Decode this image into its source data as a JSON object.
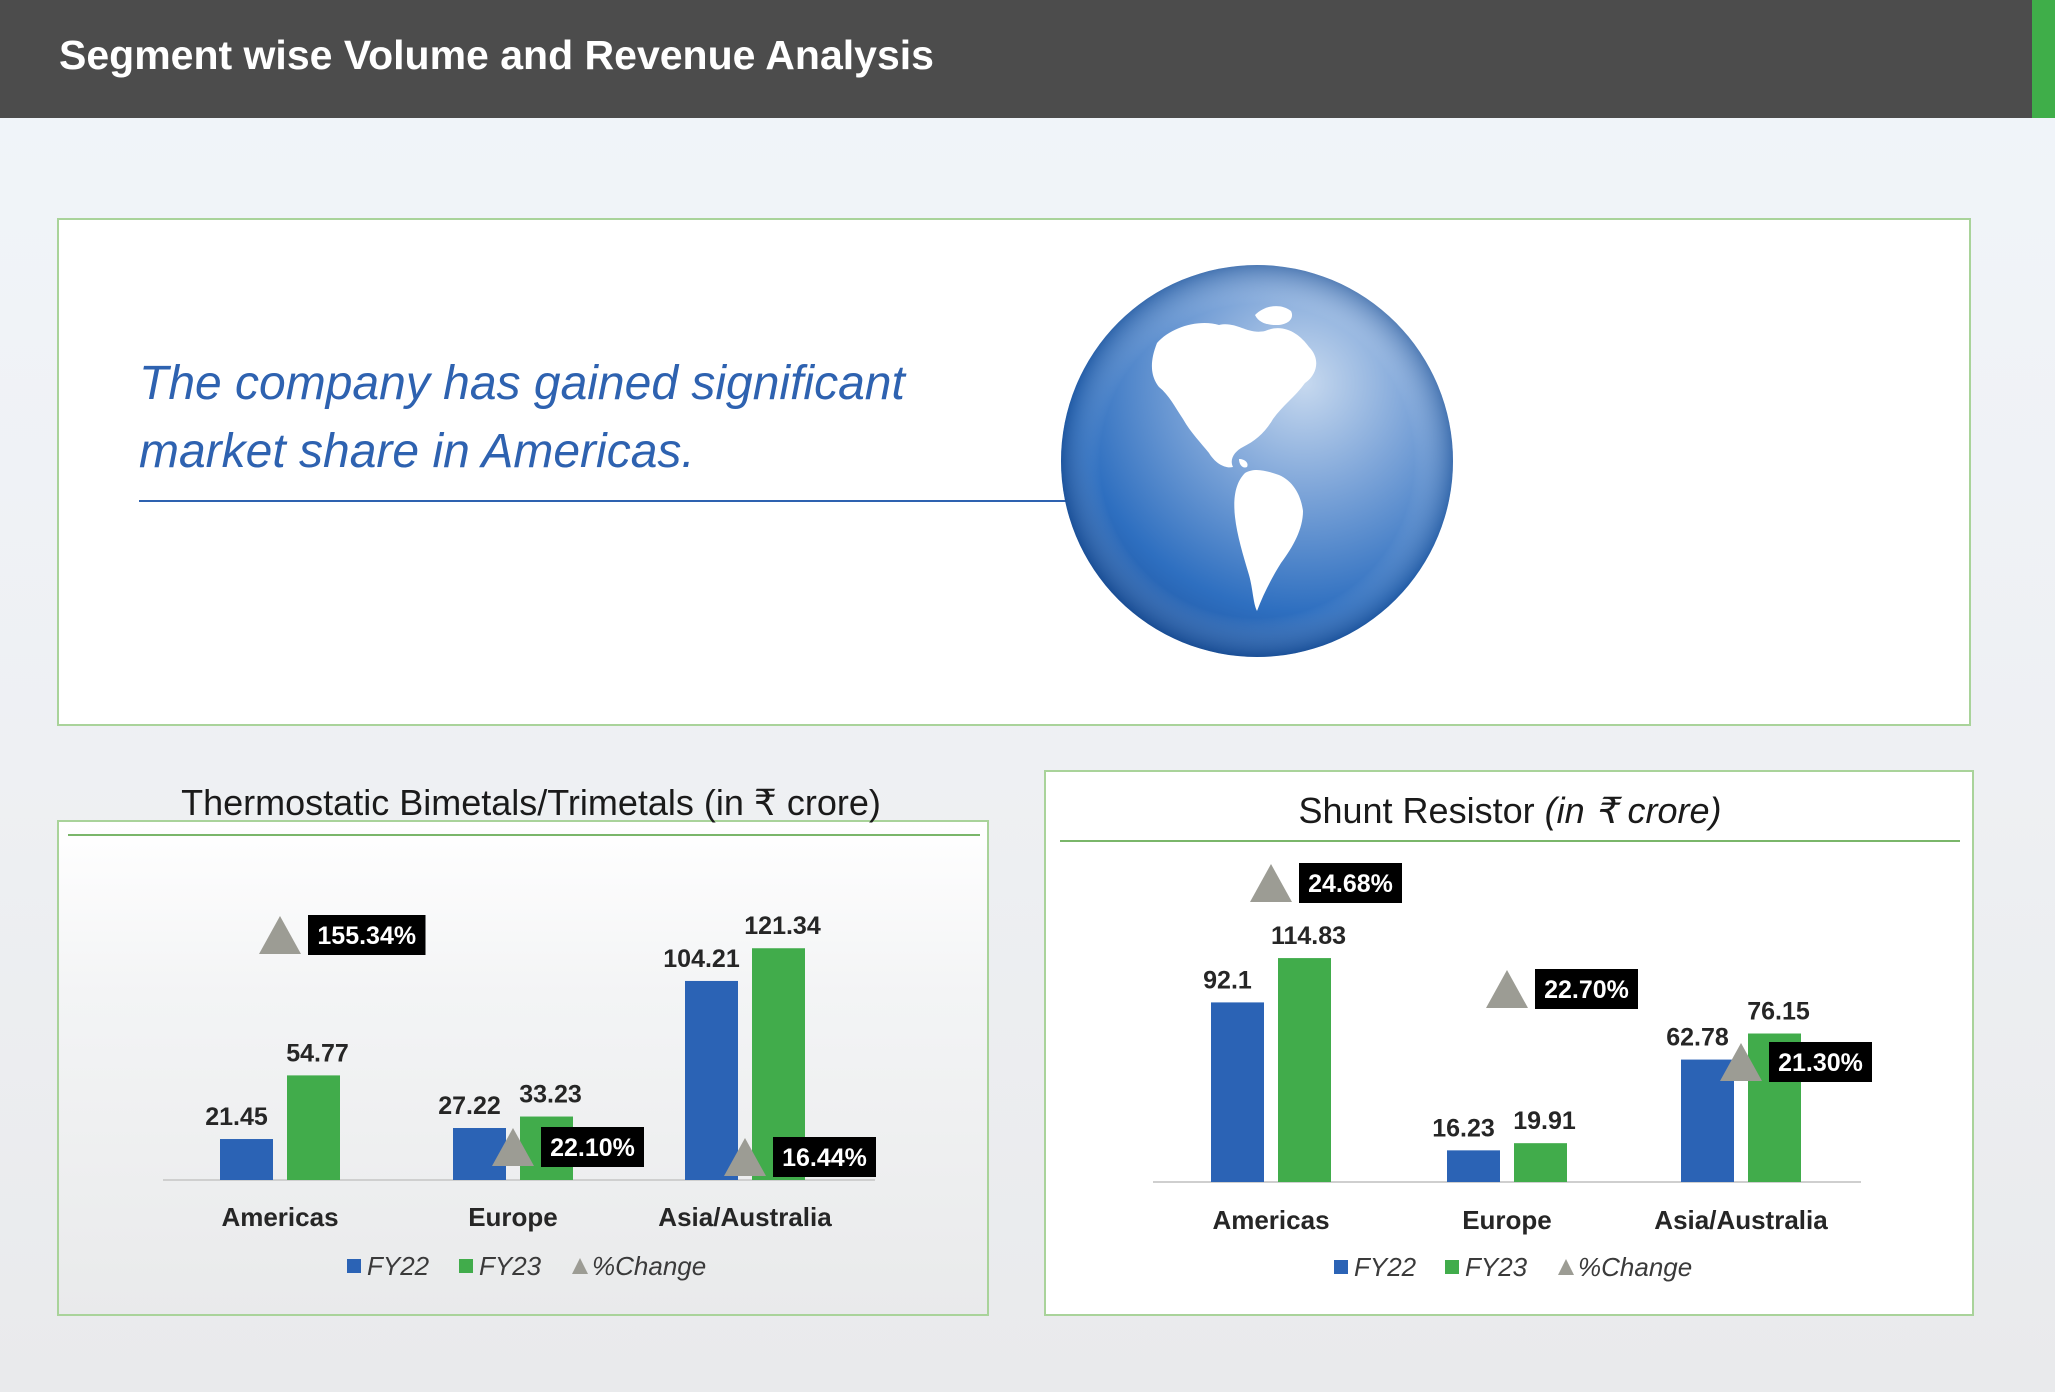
{
  "header": {
    "title": "Segment wise Volume and Revenue Analysis",
    "accent_color": "#3fae49",
    "background_color": "#4c4c4c"
  },
  "hero": {
    "text": "The company has gained significant market share in Americas.",
    "image": "globe-americas-icon",
    "text_color": "#2e62b0"
  },
  "colors": {
    "fy22": "#2b63b5",
    "fy23": "#41ac4b",
    "change_marker": "#9c9c94",
    "change_label_bg": "#000000",
    "change_label_text": "#ffffff"
  },
  "chart_data": [
    {
      "type": "bar",
      "title": "Thermostatic Bimetals/Trimetals (in ₹ crore)",
      "categories": [
        "Americas",
        "Europe",
        "Asia/Australia"
      ],
      "series": [
        {
          "name": "FY22",
          "values": [
            21.45,
            27.22,
            104.21
          ],
          "labels": [
            "21.45",
            "27.22",
            "104.21"
          ]
        },
        {
          "name": "FY23",
          "values": [
            54.77,
            33.23,
            121.34
          ],
          "labels": [
            "54.77",
            "33.23",
            "121.34"
          ]
        }
      ],
      "percent_change": {
        "name": "%Change",
        "values": [
          155.34,
          22.1,
          16.44
        ],
        "labels": [
          "155.34%",
          "22.10%",
          "16.44%"
        ]
      },
      "legend": [
        "FY22",
        "FY23",
        "%Change"
      ],
      "legend_position": "bottom",
      "ylim": [
        0,
        125
      ],
      "grid": false
    },
    {
      "type": "bar",
      "title": "Shunt Resistor",
      "title_suffix": "(in ₹ crore)",
      "categories": [
        "Americas",
        "Europe",
        "Asia/Australia"
      ],
      "series": [
        {
          "name": "FY22",
          "values": [
            92.1,
            16.23,
            62.78
          ],
          "labels": [
            "92.1",
            "16.23",
            "62.78"
          ]
        },
        {
          "name": "FY23",
          "values": [
            114.83,
            19.91,
            76.15
          ],
          "labels": [
            "114.83",
            "19.91",
            "76.15"
          ]
        }
      ],
      "percent_change": {
        "name": "%Change",
        "values": [
          24.68,
          22.7,
          21.3
        ],
        "labels": [
          "24.68%",
          "22.70%",
          "21.30%"
        ]
      },
      "legend": [
        "FY22",
        "FY23",
        "%Change"
      ],
      "legend_position": "bottom",
      "ylim": [
        0,
        125
      ],
      "grid": false
    }
  ]
}
